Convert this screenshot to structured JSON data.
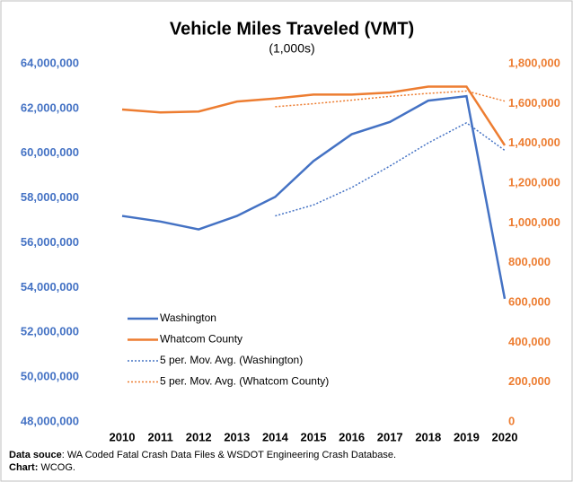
{
  "chart_data": {
    "type": "line",
    "title": "Vehicle Miles Traveled (VMT)",
    "subtitle": "(1,000s)",
    "categories": [
      "2010",
      "2011",
      "2012",
      "2013",
      "2014",
      "2015",
      "2016",
      "2017",
      "2018",
      "2019",
      "2020"
    ],
    "series": [
      {
        "name": "Washington",
        "color": "#4472c4",
        "style": "solid",
        "values": [
          57200000,
          56950000,
          56600000,
          57200000,
          58050000,
          59650000,
          60850000,
          61400000,
          62350000,
          62550000,
          53500000
        ]
      },
      {
        "name": "Whatcom County",
        "color": "#ed7d31",
        "style": "solid",
        "axis": "y2",
        "values": [
          1570000,
          1555000,
          1560000,
          1610000,
          1625000,
          1645000,
          1645000,
          1655000,
          1685000,
          1685000,
          1390000
        ]
      },
      {
        "name": "5 per. Mov. Avg. (Washington)",
        "color": "#4472c4",
        "style": "dotted",
        "values": [
          null,
          null,
          null,
          null,
          57200000,
          57690000,
          58470000,
          59430000,
          60460000,
          61360000,
          60130000
        ]
      },
      {
        "name": "5 per. Mov. Avg. (Whatcom County)",
        "color": "#ed7d31",
        "style": "dotted",
        "axis": "y2",
        "values": [
          null,
          null,
          null,
          null,
          1584000,
          1599000,
          1617000,
          1636000,
          1651000,
          1663000,
          1612000
        ]
      }
    ],
    "ylim": [
      48000000,
      64000000
    ],
    "yticks": [
      {
        "value": 48000000,
        "label": "48,000,000"
      },
      {
        "value": 50000000,
        "label": "50,000,000"
      },
      {
        "value": 52000000,
        "label": "52,000,000"
      },
      {
        "value": 54000000,
        "label": "54,000,000"
      },
      {
        "value": 56000000,
        "label": "56,000,000"
      },
      {
        "value": 58000000,
        "label": "58,000,000"
      },
      {
        "value": 60000000,
        "label": "60,000,000"
      },
      {
        "value": 62000000,
        "label": "62,000,000"
      },
      {
        "value": 64000000,
        "label": "64,000,000"
      }
    ],
    "y2lim": [
      0,
      1800000
    ],
    "y2ticks": [
      0,
      {
        "value": 200000,
        "label": "200,000"
      },
      {
        "value": 400000,
        "label": "400,000"
      },
      {
        "value": 600000,
        "label": "600,000"
      },
      {
        "value": 800000,
        "label": "800,000"
      },
      {
        "value": 1000000,
        "label": "1,000,000"
      },
      {
        "value": 1200000,
        "label": "1,200,000"
      },
      {
        "value": 1400000,
        "label": "1,400,000"
      },
      {
        "value": 1600000,
        "label": "1,600,000"
      },
      {
        "value": 1800000,
        "label": "1,800,000"
      }
    ],
    "legend": "lower-left",
    "footer": {
      "source_label": "Data souce",
      "source": ": WA Coded Fatal Crash Data Files & WSDOT Engineering Crash Database.",
      "chart_label": "Chart:",
      "chart": " WCOG."
    }
  }
}
